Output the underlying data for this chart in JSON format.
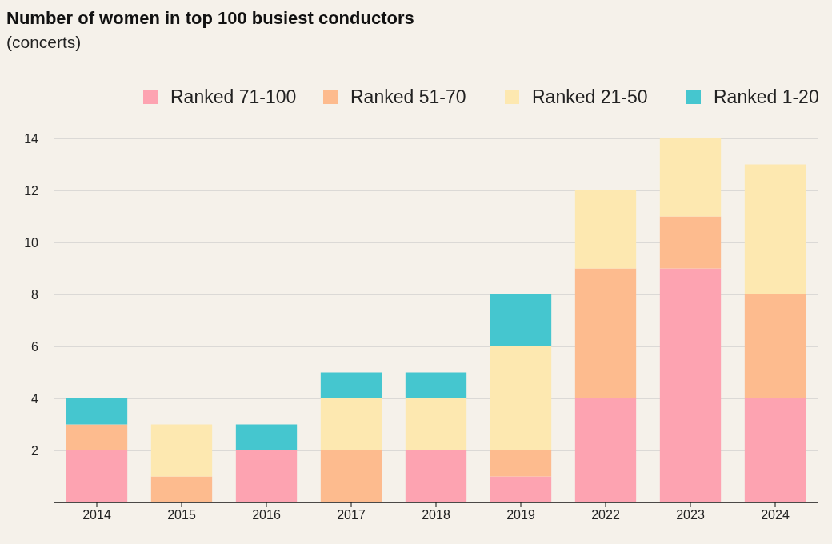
{
  "chart_data": {
    "type": "bar",
    "title": "Number of women in top 100 busiest conductors",
    "subtitle": "(concerts)",
    "stacked": true,
    "categories": [
      "2014",
      "2015",
      "2016",
      "2017",
      "2018",
      "2019",
      "2022",
      "2023",
      "2024"
    ],
    "series": [
      {
        "name": "Ranked 71-100",
        "color": "#fda3b1",
        "values": [
          2,
          0,
          2,
          0,
          2,
          1,
          4,
          9,
          4
        ]
      },
      {
        "name": "Ranked 51-70",
        "color": "#fdbb8e",
        "values": [
          1,
          1,
          0,
          2,
          0,
          1,
          5,
          2,
          4
        ]
      },
      {
        "name": "Ranked 21-50",
        "color": "#fde8b0",
        "values": [
          0,
          2,
          0,
          2,
          2,
          4,
          3,
          3,
          5
        ]
      },
      {
        "name": "Ranked 1-20",
        "color": "#45c6cf",
        "values": [
          1,
          0,
          1,
          1,
          1,
          2,
          0,
          0,
          0
        ]
      }
    ],
    "ylim": [
      0,
      14
    ],
    "yticks": [
      2,
      4,
      6,
      8,
      10,
      12,
      14
    ],
    "grid": "y",
    "legend": "top right"
  }
}
